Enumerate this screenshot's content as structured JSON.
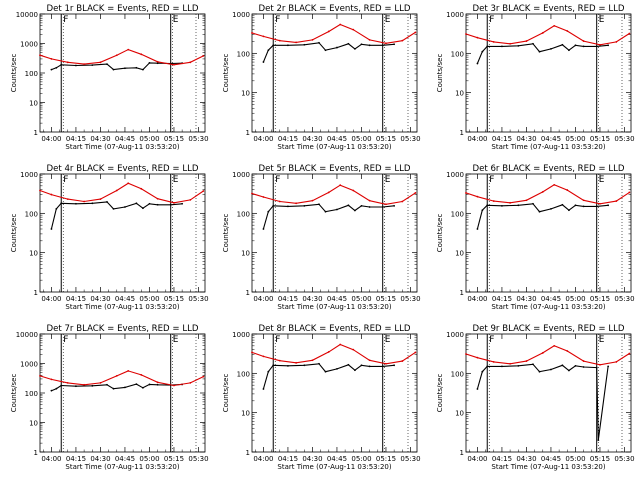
{
  "figure": {
    "xaxis_title": "Start Time (07-Aug-11 03:53:20)",
    "ylabel": "Counts/sec",
    "time_ticks": [
      "04:00",
      "04:15",
      "04:30",
      "04:45",
      "05:00",
      "05:15",
      "05:30"
    ],
    "y_ticks": [
      "1",
      "10",
      "100",
      "1000"
    ],
    "y_ticks_ext": [
      "1",
      "10",
      "100",
      "1000",
      "10000"
    ]
  },
  "chart_data": [
    {
      "type": "line",
      "title": "Det 1r BLACK = Events, RED = LLD",
      "xlabel": "Start Time (07-Aug-11 03:53:20)",
      "ylabel": "Counts/sec",
      "x_ticks": [
        "04:00",
        "04:15",
        "04:30",
        "04:45",
        "05:00",
        "05:15",
        "05:30"
      ],
      "y_scale": "log",
      "ylim": [
        1,
        10000
      ],
      "markers": [
        {
          "label": "F",
          "time": "04:06"
        },
        {
          "label": "E",
          "time": "05:13"
        }
      ],
      "series": [
        {
          "name": "Events",
          "color": "#000000",
          "x": [
            "04:00",
            "04:03",
            "04:06",
            "04:15",
            "04:25",
            "04:34",
            "04:38",
            "04:45",
            "04:52",
            "04:56",
            "05:00",
            "05:05",
            "05:13",
            "05:20"
          ],
          "y": [
            130,
            150,
            190,
            180,
            185,
            200,
            130,
            145,
            150,
            130,
            220,
            215,
            210,
            215
          ]
        },
        {
          "name": "LLD",
          "color": "#dd0000",
          "x": [
            "03:53",
            "04:00",
            "04:10",
            "04:20",
            "04:30",
            "04:40",
            "04:47",
            "04:55",
            "05:05",
            "05:15",
            "05:25",
            "05:33"
          ],
          "y": [
            400,
            300,
            230,
            200,
            230,
            400,
            620,
            430,
            240,
            190,
            230,
            380
          ]
        }
      ]
    },
    {
      "type": "line",
      "title": "Det 2r BLACK = Events, RED = LLD",
      "xlabel": "Start Time (07-Aug-11 03:53:20)",
      "ylabel": "Counts/sec",
      "x_ticks": [
        "04:00",
        "04:15",
        "04:30",
        "04:45",
        "05:00",
        "05:15",
        "05:30"
      ],
      "y_scale": "log",
      "ylim": [
        1,
        1000
      ],
      "markers": [
        {
          "label": "F",
          "time": "04:06"
        },
        {
          "label": "E",
          "time": "05:13"
        }
      ],
      "series": [
        {
          "name": "Events",
          "color": "#000000",
          "x": [
            "04:00",
            "04:03",
            "04:06",
            "04:15",
            "04:25",
            "04:34",
            "04:38",
            "04:45",
            "04:52",
            "04:56",
            "05:00",
            "05:05",
            "05:13",
            "05:20"
          ],
          "y": [
            60,
            120,
            160,
            160,
            165,
            185,
            120,
            140,
            175,
            130,
            170,
            160,
            160,
            170
          ]
        },
        {
          "name": "LLD",
          "color": "#dd0000",
          "x": [
            "03:53",
            "04:00",
            "04:10",
            "04:20",
            "04:30",
            "04:40",
            "04:47",
            "04:55",
            "05:05",
            "05:15",
            "05:25",
            "05:33"
          ],
          "y": [
            330,
            270,
            210,
            190,
            220,
            360,
            540,
            400,
            220,
            180,
            210,
            340
          ]
        }
      ]
    },
    {
      "type": "line",
      "title": "Det 3r BLACK = Events, RED = LLD",
      "xlabel": "Start Time (07-Aug-11 03:53:20)",
      "ylabel": "Counts/sec",
      "x_ticks": [
        "04:00",
        "04:15",
        "04:30",
        "04:45",
        "05:00",
        "05:15",
        "05:30"
      ],
      "y_scale": "log",
      "ylim": [
        1,
        1000
      ],
      "markers": [
        {
          "label": "F",
          "time": "04:06"
        },
        {
          "label": "E",
          "time": "05:13"
        }
      ],
      "series": [
        {
          "name": "Events",
          "color": "#000000",
          "x": [
            "04:00",
            "04:03",
            "04:06",
            "04:15",
            "04:25",
            "04:34",
            "04:38",
            "04:45",
            "04:52",
            "04:56",
            "05:00",
            "05:05",
            "05:13",
            "05:20"
          ],
          "y": [
            55,
            110,
            150,
            150,
            155,
            175,
            110,
            130,
            165,
            120,
            160,
            150,
            150,
            160
          ]
        },
        {
          "name": "LLD",
          "color": "#dd0000",
          "x": [
            "03:53",
            "04:00",
            "04:10",
            "04:20",
            "04:30",
            "04:40",
            "04:47",
            "04:55",
            "05:05",
            "05:15",
            "05:25",
            "05:33"
          ],
          "y": [
            310,
            250,
            195,
            175,
            205,
            330,
            500,
            370,
            205,
            165,
            195,
            320
          ]
        }
      ]
    },
    {
      "type": "line",
      "title": "Det 4r BLACK = Events, RED = LLD",
      "xlabel": "Start Time (07-Aug-11 03:53:20)",
      "ylabel": "Counts/sec",
      "x_ticks": [
        "04:00",
        "04:15",
        "04:30",
        "04:45",
        "05:00",
        "05:15",
        "05:30"
      ],
      "y_scale": "log",
      "ylim": [
        1,
        1000
      ],
      "markers": [
        {
          "label": "F",
          "time": "04:06"
        },
        {
          "label": "E",
          "time": "05:13"
        }
      ],
      "series": [
        {
          "name": "Events",
          "color": "#000000",
          "x": [
            "04:00",
            "04:03",
            "04:06",
            "04:15",
            "04:25",
            "04:34",
            "04:38",
            "04:45",
            "04:52",
            "04:56",
            "05:00",
            "05:05",
            "05:13",
            "05:20"
          ],
          "y": [
            40,
            130,
            180,
            175,
            180,
            195,
            130,
            145,
            180,
            135,
            175,
            165,
            165,
            175
          ]
        },
        {
          "name": "LLD",
          "color": "#dd0000",
          "x": [
            "03:53",
            "04:00",
            "04:10",
            "04:20",
            "04:30",
            "04:40",
            "04:47",
            "04:55",
            "05:05",
            "05:15",
            "05:25",
            "05:33"
          ],
          "y": [
            380,
            300,
            230,
            200,
            230,
            380,
            580,
            420,
            235,
            185,
            220,
            370
          ]
        }
      ]
    },
    {
      "type": "line",
      "title": "Det 5r BLACK = Events, RED = LLD",
      "xlabel": "Start Time (07-Aug-11 03:53:20)",
      "ylabel": "Counts/sec",
      "x_ticks": [
        "04:00",
        "04:15",
        "04:30",
        "04:45",
        "05:00",
        "05:15",
        "05:30"
      ],
      "y_scale": "log",
      "ylim": [
        1,
        1000
      ],
      "markers": [
        {
          "label": "F",
          "time": "04:06"
        },
        {
          "label": "E",
          "time": "05:13"
        }
      ],
      "series": [
        {
          "name": "Events",
          "color": "#000000",
          "x": [
            "04:00",
            "04:03",
            "04:06",
            "04:15",
            "04:25",
            "04:34",
            "04:38",
            "04:45",
            "04:52",
            "04:56",
            "05:00",
            "05:05",
            "05:13",
            "05:20"
          ],
          "y": [
            40,
            110,
            155,
            150,
            155,
            170,
            110,
            125,
            160,
            118,
            155,
            145,
            145,
            155
          ]
        },
        {
          "name": "LLD",
          "color": "#dd0000",
          "x": [
            "03:53",
            "04:00",
            "04:10",
            "04:20",
            "04:30",
            "04:40",
            "04:47",
            "04:55",
            "05:05",
            "05:15",
            "05:25",
            "05:33"
          ],
          "y": [
            320,
            260,
            200,
            180,
            210,
            340,
            520,
            380,
            210,
            170,
            200,
            330
          ]
        }
      ]
    },
    {
      "type": "line",
      "title": "Det 6r BLACK = Events, RED = LLD",
      "xlabel": "Start Time (07-Aug-11 03:53:20)",
      "ylabel": "Counts/sec",
      "x_ticks": [
        "04:00",
        "04:15",
        "04:30",
        "04:45",
        "05:00",
        "05:15",
        "05:30"
      ],
      "y_scale": "log",
      "ylim": [
        1,
        1000
      ],
      "markers": [
        {
          "label": "F",
          "time": "04:06"
        },
        {
          "label": "E",
          "time": "05:13"
        }
      ],
      "series": [
        {
          "name": "Events",
          "color": "#000000",
          "x": [
            "04:00",
            "04:03",
            "04:06",
            "04:15",
            "04:25",
            "04:34",
            "04:38",
            "04:45",
            "04:52",
            "04:56",
            "05:00",
            "05:05",
            "05:13",
            "05:20"
          ],
          "y": [
            40,
            120,
            160,
            155,
            160,
            175,
            110,
            130,
            165,
            120,
            160,
            150,
            150,
            160
          ]
        },
        {
          "name": "LLD",
          "color": "#dd0000",
          "x": [
            "03:53",
            "04:00",
            "04:10",
            "04:20",
            "04:30",
            "04:40",
            "04:47",
            "04:55",
            "05:05",
            "05:15",
            "05:25",
            "05:33"
          ],
          "y": [
            330,
            265,
            205,
            185,
            215,
            350,
            530,
            390,
            215,
            175,
            205,
            340
          ]
        }
      ]
    },
    {
      "type": "line",
      "title": "Det 7r BLACK = Events, RED = LLD",
      "xlabel": "Start Time (07-Aug-11 03:53:20)",
      "ylabel": "Counts/sec",
      "x_ticks": [
        "04:00",
        "04:15",
        "04:30",
        "04:45",
        "05:00",
        "05:15",
        "05:30"
      ],
      "y_scale": "log",
      "ylim": [
        1,
        10000
      ],
      "markers": [
        {
          "label": "F",
          "time": "04:06"
        },
        {
          "label": "E",
          "time": "05:13"
        }
      ],
      "series": [
        {
          "name": "Events",
          "color": "#000000",
          "x": [
            "04:00",
            "04:03",
            "04:06",
            "04:15",
            "04:25",
            "04:34",
            "04:38",
            "04:45",
            "04:52",
            "04:56",
            "05:00",
            "05:05",
            "05:13",
            "05:20"
          ],
          "y": [
            120,
            140,
            180,
            170,
            175,
            190,
            140,
            155,
            200,
            150,
            195,
            190,
            185,
            195
          ]
        },
        {
          "name": "LLD",
          "color": "#dd0000",
          "x": [
            "03:53",
            "04:00",
            "04:10",
            "04:20",
            "04:30",
            "04:40",
            "04:47",
            "04:55",
            "05:05",
            "05:15",
            "05:25",
            "05:33"
          ],
          "y": [
            380,
            290,
            220,
            190,
            220,
            380,
            560,
            410,
            230,
            180,
            220,
            360
          ]
        }
      ]
    },
    {
      "type": "line",
      "title": "Det 8r BLACK = Events, RED = LLD",
      "xlabel": "Start Time (07-Aug-11 03:53:20)",
      "ylabel": "Counts/sec",
      "x_ticks": [
        "04:00",
        "04:15",
        "04:30",
        "04:45",
        "05:00",
        "05:15",
        "05:30"
      ],
      "y_scale": "log",
      "ylim": [
        1,
        1000
      ],
      "markers": [
        {
          "label": "F",
          "time": "04:06"
        },
        {
          "label": "E",
          "time": "05:13"
        }
      ],
      "series": [
        {
          "name": "Events",
          "color": "#000000",
          "x": [
            "04:00",
            "04:03",
            "04:06",
            "04:15",
            "04:25",
            "04:34",
            "04:38",
            "04:45",
            "04:52",
            "04:56",
            "05:00",
            "05:05",
            "05:13",
            "05:20"
          ],
          "y": [
            40,
            110,
            160,
            155,
            160,
            175,
            110,
            130,
            165,
            120,
            160,
            150,
            150,
            160
          ]
        },
        {
          "name": "LLD",
          "color": "#dd0000",
          "x": [
            "03:53",
            "04:00",
            "04:10",
            "04:20",
            "04:30",
            "04:40",
            "04:47",
            "04:55",
            "05:05",
            "05:15",
            "05:25",
            "05:33"
          ],
          "y": [
            340,
            270,
            210,
            185,
            215,
            350,
            540,
            400,
            215,
            175,
            205,
            340
          ]
        }
      ]
    },
    {
      "type": "line",
      "title": "Det 9r BLACK = Events, RED = LLD",
      "xlabel": "Start Time (07-Aug-11 03:53:20)",
      "ylabel": "Counts/sec",
      "x_ticks": [
        "04:00",
        "04:15",
        "04:30",
        "04:45",
        "05:00",
        "05:15",
        "05:30"
      ],
      "y_scale": "log",
      "ylim": [
        1,
        1000
      ],
      "markers": [
        {
          "label": "F",
          "time": "04:06"
        },
        {
          "label": "E",
          "time": "05:13"
        }
      ],
      "series": [
        {
          "name": "Events",
          "color": "#000000",
          "x": [
            "04:00",
            "04:03",
            "04:06",
            "04:15",
            "04:25",
            "04:34",
            "04:38",
            "04:45",
            "04:52",
            "04:56",
            "05:00",
            "05:05",
            "05:13",
            "05:14",
            "05:20"
          ],
          "y": [
            40,
            110,
            150,
            150,
            155,
            170,
            110,
            125,
            160,
            118,
            155,
            145,
            140,
            2,
            150
          ]
        },
        {
          "name": "LLD",
          "color": "#dd0000",
          "x": [
            "03:53",
            "04:00",
            "04:10",
            "04:20",
            "04:30",
            "04:40",
            "04:47",
            "04:55",
            "05:05",
            "05:15",
            "05:25",
            "05:33"
          ],
          "y": [
            310,
            250,
            195,
            175,
            205,
            330,
            500,
            370,
            205,
            165,
            195,
            320
          ]
        }
      ]
    }
  ]
}
